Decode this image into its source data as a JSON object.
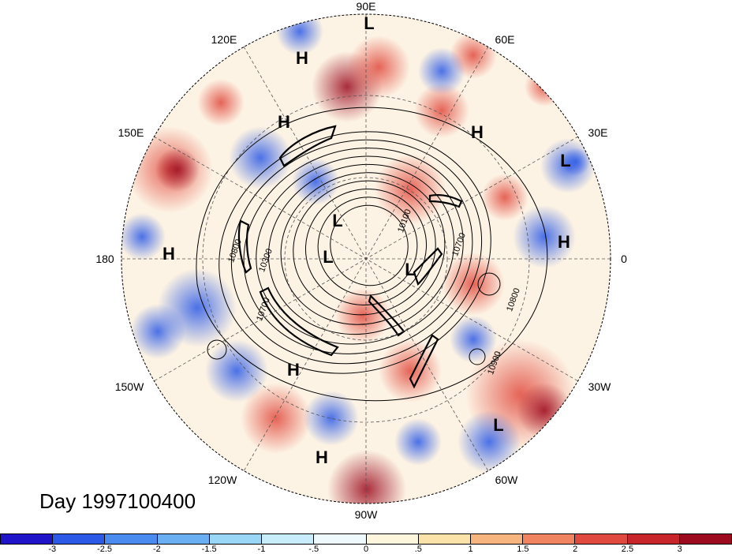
{
  "title": "Day 1997100400",
  "longitude_labels": [
    {
      "text": "90E"
    },
    {
      "text": "60E"
    },
    {
      "text": "30E"
    },
    {
      "text": "0"
    },
    {
      "text": "30W"
    },
    {
      "text": "60W"
    },
    {
      "text": "90W"
    },
    {
      "text": "120W"
    },
    {
      "text": "150W"
    },
    {
      "text": "180"
    },
    {
      "text": "150E"
    },
    {
      "text": "120E"
    }
  ],
  "pressure_centers": [
    {
      "type": "L"
    },
    {
      "type": "H"
    },
    {
      "type": "H"
    },
    {
      "type": "H"
    },
    {
      "type": "L"
    },
    {
      "type": "H"
    },
    {
      "type": "H"
    },
    {
      "type": "L"
    },
    {
      "type": "L"
    },
    {
      "type": "L"
    },
    {
      "type": "H"
    },
    {
      "type": "H"
    },
    {
      "type": "L"
    }
  ],
  "contour_labels": [
    "10800",
    "10300",
    "10700",
    "10100",
    "10700",
    "10800",
    "10900"
  ],
  "colorbar": {
    "colors": [
      "#1f14c8",
      "#2c5ae6",
      "#4a8bf0",
      "#6aaff2",
      "#9ad6f5",
      "#c7ecfa",
      "#eef9fd",
      "#fdf6dc",
      "#fbe2a8",
      "#f6b57e",
      "#f08461",
      "#e04a3e",
      "#c7252a",
      "#9b0a1e"
    ],
    "ticks": [
      "-3",
      "-2.5",
      "-2",
      "-1.5",
      "-1",
      "-.5",
      "0",
      ".5",
      "1",
      "1.5",
      "2",
      "2.5",
      "3"
    ]
  },
  "color_scale": {
    "negative": "#2c5ae6",
    "positive": "#e04a3e",
    "neutral": "#ffffff"
  }
}
